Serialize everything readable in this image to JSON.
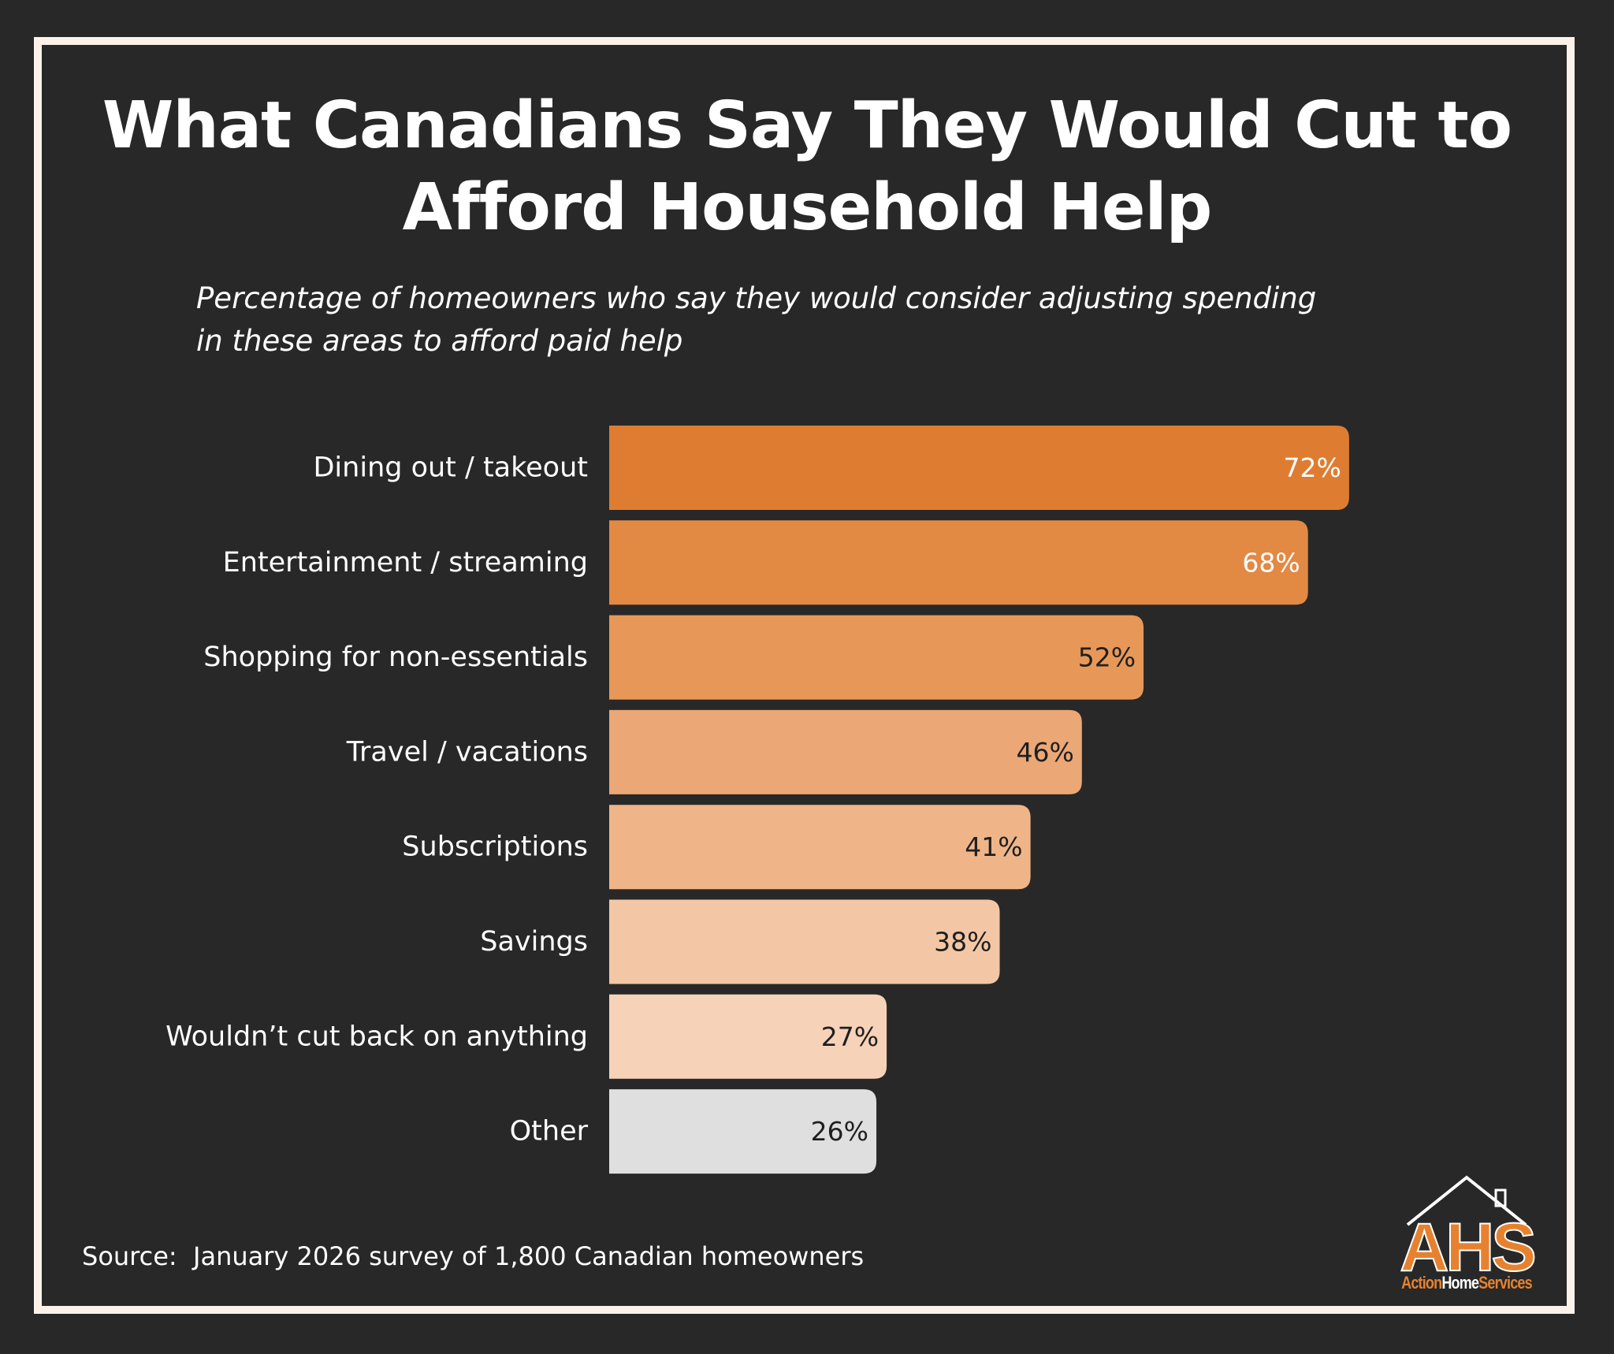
{
  "header": {
    "title_line1": "What Canadians Say They Would Cut to",
    "title_line2": "Afford Household Help",
    "subtitle_line1": "Percentage of homeowners who say they would consider adjusting spending",
    "subtitle_line2": "in these areas to afford paid help"
  },
  "chart_data": {
    "type": "bar",
    "orientation": "horizontal",
    "title": "What Canadians Say They Would Cut to Afford Household Help",
    "subtitle": "Percentage of homeowners who say they would consider adjusting spending in these areas to afford paid help",
    "categories": [
      "Dining out / takeout",
      "Entertainment / streaming",
      "Shopping for non-essentials",
      "Travel / vacations",
      "Subscriptions",
      "Savings",
      "Wouldn’t cut back on anything",
      "Other"
    ],
    "values": [
      72,
      68,
      52,
      46,
      41,
      38,
      27,
      26
    ],
    "value_labels": [
      "72%",
      "68%",
      "52%",
      "46%",
      "41%",
      "38%",
      "27%",
      "26%"
    ],
    "bar_colors": [
      "#de7d32",
      "#e28944",
      "#e79858",
      "#eba776",
      "#efb589",
      "#f3c7a5",
      "#f6d2b9",
      "#dfdfdf"
    ],
    "label_colors": [
      "#ffffff",
      "#ffffff",
      "#1f1f1f",
      "#1f1f1f",
      "#1f1f1f",
      "#1f1f1f",
      "#1f1f1f",
      "#1f1f1f"
    ],
    "xlim": [
      0,
      100
    ],
    "grid": false,
    "legend": "none"
  },
  "footer": {
    "source": "Source:  January 2026 survey of 1,800 Canadian homeowners"
  },
  "logo": {
    "monogram": "AHS",
    "word1": "Action",
    "word2": "Home",
    "word3": "Services",
    "accent_color": "#e6822f"
  }
}
